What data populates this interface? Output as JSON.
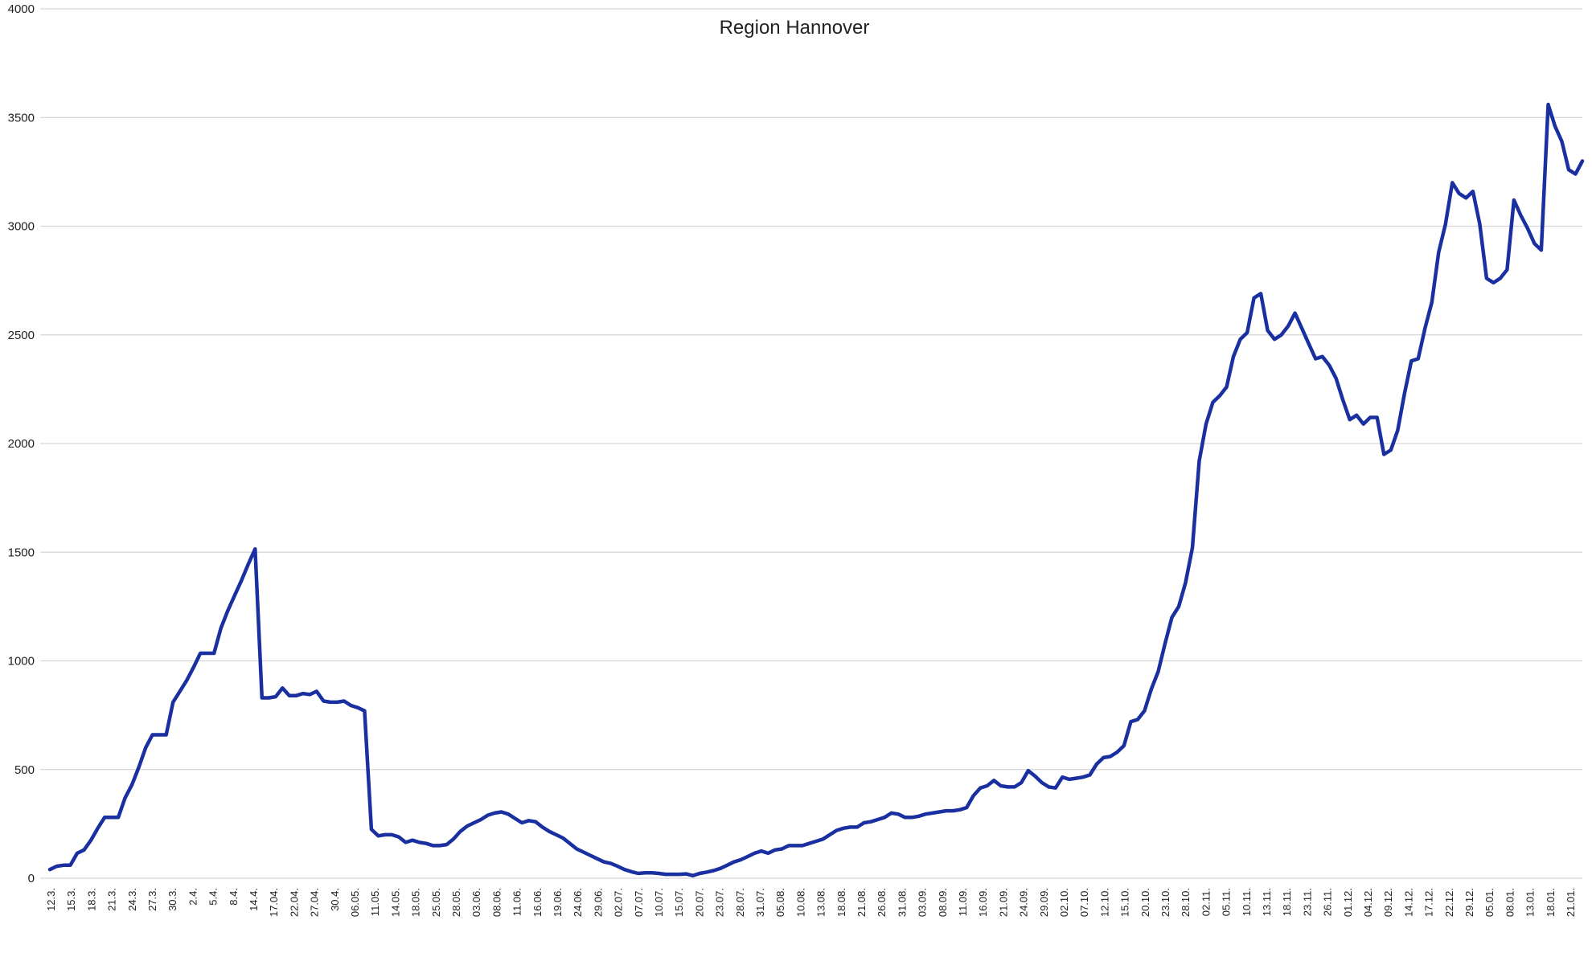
{
  "chart_data": {
    "type": "line",
    "title": "Region Hannover",
    "xlabel": "",
    "ylabel": "",
    "ylim": [
      0,
      4000
    ],
    "yticks": [
      0,
      500,
      1000,
      1500,
      2000,
      2500,
      3000,
      3500,
      4000
    ],
    "grid": "horizontal",
    "legend": "none",
    "line_color": "#1a30a0",
    "grid_color": "#d6d6d6",
    "x_tick_labels": [
      "12.3.",
      "15.3.",
      "18.3.",
      "21.3.",
      "24.3.",
      "27.3.",
      "30.3.",
      "2.4.",
      "5.4.",
      "8.4.",
      "14.4.",
      "17.04.",
      "22.04.",
      "27.04.",
      "30.4.",
      "06.05.",
      "11.05.",
      "14.05.",
      "18.05.",
      "25.05.",
      "28.05.",
      "03.06.",
      "08.06.",
      "11.06.",
      "16.06.",
      "19.06.",
      "24.06.",
      "29.06.",
      "02.07.",
      "07.07.",
      "10.07.",
      "15.07.",
      "20.07.",
      "23.07.",
      "28.07.",
      "31.07.",
      "05.08.",
      "10.08.",
      "13.08.",
      "18.08.",
      "21.08.",
      "26.08.",
      "31.08.",
      "03.09.",
      "08.09.",
      "11.09.",
      "16.09.",
      "21.09.",
      "24.09.",
      "29.09.",
      "02.10.",
      "07.10.",
      "12.10.",
      "15.10.",
      "20.10.",
      "23.10.",
      "28.10.",
      "02.11.",
      "05.11.",
      "10.11.",
      "13.11.",
      "18.11.",
      "23.11.",
      "26.11.",
      "01.12.",
      "04.12.",
      "09.12.",
      "14.12.",
      "17.12.",
      "22.12.",
      "29.12.",
      "05.01.",
      "08.01.",
      "13.01.",
      "18.01.",
      "21.01."
    ],
    "series": [
      {
        "values": [
          40,
          55,
          60,
          60,
          115,
          130,
          175,
          230,
          280,
          280,
          280,
          370,
          430,
          510,
          600,
          660,
          660,
          660,
          810,
          860,
          910,
          970,
          1035,
          1035,
          1035,
          1150,
          1230,
          1300,
          1370,
          1445,
          1515,
          830,
          830,
          835,
          875,
          840,
          840,
          850,
          845,
          860,
          815,
          810,
          810,
          815,
          795,
          785,
          770,
          225,
          195,
          200,
          200,
          190,
          165,
          175,
          165,
          160,
          150,
          150,
          155,
          180,
          215,
          240,
          255,
          270,
          290,
          300,
          305,
          295,
          275,
          255,
          265,
          260,
          235,
          215,
          200,
          185,
          160,
          135,
          120,
          105,
          90,
          75,
          68,
          55,
          40,
          30,
          22,
          25,
          25,
          22,
          18,
          18,
          18,
          20,
          12,
          22,
          28,
          35,
          45,
          60,
          75,
          85,
          100,
          115,
          125,
          115,
          130,
          135,
          150,
          150,
          150,
          160,
          170,
          180,
          200,
          220,
          230,
          235,
          235,
          255,
          260,
          270,
          280,
          300,
          295,
          280,
          280,
          285,
          295,
          300,
          305,
          310,
          310,
          315,
          325,
          380,
          415,
          425,
          450,
          425,
          420,
          420,
          440,
          495,
          470,
          440,
          420,
          415,
          465,
          455,
          460,
          465,
          475,
          525,
          555,
          560,
          580,
          610,
          720,
          730,
          770,
          870,
          950,
          1080,
          1200,
          1250,
          1360,
          1520,
          1920,
          2090,
          2190,
          2220,
          2260,
          2400,
          2480,
          2510,
          2670,
          2690,
          2520,
          2480,
          2500,
          2540,
          2600,
          2530,
          2460,
          2390,
          2400,
          2360,
          2300,
          2200,
          2110,
          2130,
          2090,
          2120,
          2120,
          1950,
          1970,
          2060,
          2230,
          2380,
          2390,
          2530,
          2650,
          2880,
          3010,
          3200,
          3150,
          3130,
          3160,
          3010,
          2760,
          2740,
          2760,
          2800,
          3120,
          3050,
          2990,
          2920,
          2890,
          3560,
          3460,
          3390,
          3260,
          3240,
          3300
        ]
      }
    ]
  }
}
